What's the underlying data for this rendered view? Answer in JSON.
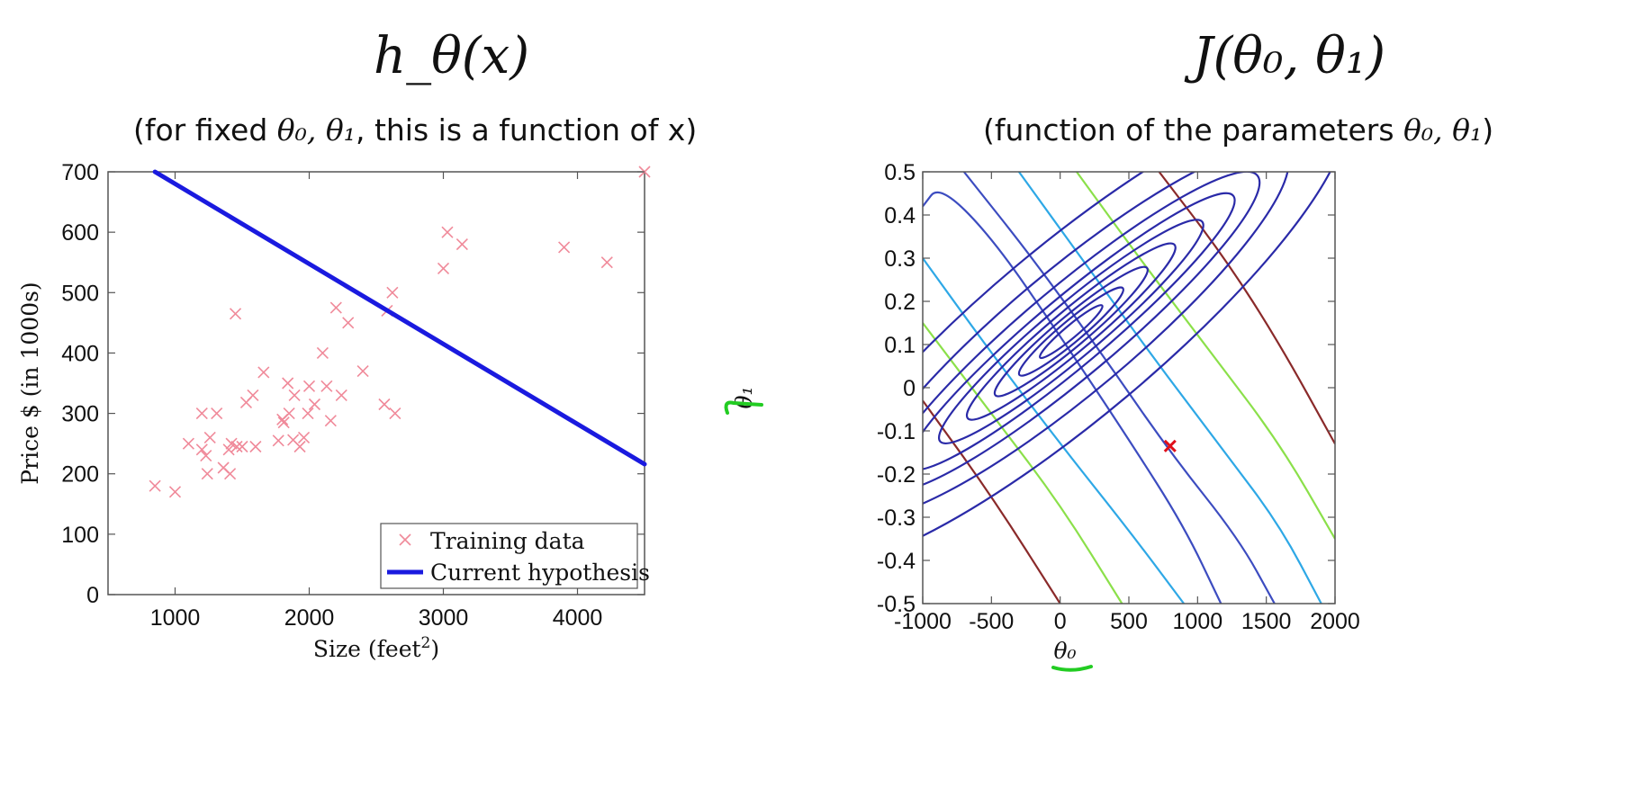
{
  "left": {
    "title": "h_θ(x)",
    "subtitle_prefix": "(for fixed ",
    "subtitle_params": "θ₀, θ₁",
    "subtitle_suffix": ", this is a function of x)"
  },
  "right": {
    "title": "J(θ₀, θ₁)",
    "subtitle_prefix": "(function of the parameters ",
    "subtitle_params": "θ₀, θ₁",
    "subtitle_suffix": ")"
  },
  "colors": {
    "training": "#f08a9a",
    "hypothesis": "#1a1adf",
    "marker": "#e0101a",
    "highlight": "#22cc22"
  },
  "chart_data": [
    {
      "type": "scatter",
      "xlabel_main": "Size (feet",
      "xlabel_sup": "2",
      "xlabel_end": ")",
      "ylabel": "Price $ (in 1000s)",
      "xlim": [
        500,
        4500
      ],
      "ylim": [
        0,
        700
      ],
      "xticks": [
        "1000",
        "2000",
        "3000",
        "4000"
      ],
      "yticks": [
        "0",
        "100",
        "200",
        "300",
        "400",
        "500",
        "600",
        "700"
      ],
      "legend_position": "bottom-right",
      "series": [
        {
          "name": "Training data",
          "marker": "x",
          "points": [
            [
              850,
              180
            ],
            [
              1000,
              170
            ],
            [
              1100,
              250
            ],
            [
              1200,
              300
            ],
            [
              1200,
              240
            ],
            [
              1230,
              230
            ],
            [
              1240,
              200
            ],
            [
              1260,
              260
            ],
            [
              1310,
              300
            ],
            [
              1360,
              210
            ],
            [
              1400,
              240
            ],
            [
              1410,
              200
            ],
            [
              1420,
              250
            ],
            [
              1450,
              465
            ],
            [
              1460,
              245
            ],
            [
              1500,
              245
            ],
            [
              1530,
              318
            ],
            [
              1580,
              330
            ],
            [
              1600,
              245
            ],
            [
              1660,
              368
            ],
            [
              1770,
              255
            ],
            [
              1800,
              290
            ],
            [
              1810,
              285
            ],
            [
              1840,
              350
            ],
            [
              1850,
              300
            ],
            [
              1880,
              256
            ],
            [
              1890,
              330
            ],
            [
              1930,
              245
            ],
            [
              1960,
              260
            ],
            [
              1990,
              300
            ],
            [
              2000,
              345
            ],
            [
              2040,
              315
            ],
            [
              2100,
              400
            ],
            [
              2130,
              345
            ],
            [
              2160,
              288
            ],
            [
              2200,
              475
            ],
            [
              2240,
              330
            ],
            [
              2290,
              450
            ],
            [
              2400,
              370
            ],
            [
              2560,
              315
            ],
            [
              2580,
              470
            ],
            [
              2620,
              500
            ],
            [
              2640,
              300
            ],
            [
              3000,
              540
            ],
            [
              3030,
              600
            ],
            [
              3140,
              580
            ],
            [
              3900,
              575
            ],
            [
              4220,
              550
            ],
            [
              4500,
              700
            ]
          ]
        },
        {
          "name": "Current hypothesis",
          "line": [
            [
              850,
              700
            ],
            [
              4500,
              216
            ]
          ]
        }
      ]
    },
    {
      "type": "contour",
      "xlabel": "θ₀",
      "ylabel": "θ₁",
      "xlim": [
        -1000,
        2000
      ],
      "ylim": [
        -0.5,
        0.5
      ],
      "xticks": [
        "-1000",
        "-500",
        "0",
        "500",
        "1000",
        "1500",
        "2000"
      ],
      "yticks": [
        "-0.5",
        "-0.4",
        "-0.3",
        "-0.2",
        "-0.1",
        "0",
        "0.1",
        "0.2",
        "0.3",
        "0.4",
        "0.5"
      ],
      "center": [
        80,
        0.13
      ],
      "rotation_deg": -40,
      "ellipse_semi_axes": [
        [
          45,
          7
        ],
        [
          75,
          12
        ],
        [
          110,
          17
        ],
        [
          150,
          23
        ],
        [
          190,
          30
        ],
        [
          235,
          38
        ],
        [
          270,
          50
        ],
        [
          310,
          68
        ],
        [
          390,
          95
        ]
      ],
      "ellipse_color": "#2a2aa8",
      "level_lines": [
        {
          "color": "#3c4cc0",
          "pts": [
            [
              -1000,
              0.42
            ],
            [
              -880,
              0.47
            ],
            [
              -500,
              0.35
            ],
            [
              0,
              0.12
            ],
            [
              500,
              -0.12
            ],
            [
              900,
              -0.32
            ],
            [
              1170,
              -0.5
            ]
          ]
        },
        {
          "color": "#3c4cc0",
          "pts": [
            [
              -700,
              0.5
            ],
            [
              -200,
              0.3
            ],
            [
              300,
              0.08
            ],
            [
              800,
              -0.15
            ],
            [
              1300,
              -0.35
            ],
            [
              1560,
              -0.5
            ]
          ]
        },
        {
          "color": "#2ea8e6",
          "pts": [
            [
              -1000,
              0.3
            ],
            [
              -500,
              0.08
            ],
            [
              0,
              -0.13
            ],
            [
              500,
              -0.33
            ],
            [
              900,
              -0.5
            ]
          ]
        },
        {
          "color": "#2ea8e6",
          "pts": [
            [
              -300,
              0.5
            ],
            [
              200,
              0.28
            ],
            [
              700,
              0.06
            ],
            [
              1200,
              -0.15
            ],
            [
              1600,
              -0.32
            ],
            [
              1900,
              -0.5
            ]
          ]
        },
        {
          "color": "#8be04a",
          "pts": [
            [
              -1000,
              0.15
            ],
            [
              -500,
              -0.06
            ],
            [
              0,
              -0.27
            ],
            [
              450,
              -0.5
            ]
          ]
        },
        {
          "color": "#8be04a",
          "pts": [
            [
              120,
              0.5
            ],
            [
              600,
              0.29
            ],
            [
              1100,
              0.08
            ],
            [
              1600,
              -0.13
            ],
            [
              2000,
              -0.35
            ]
          ]
        },
        {
          "color": "#8a2a2a",
          "pts": [
            [
              -1000,
              -0.03
            ],
            [
              -500,
              -0.25
            ],
            [
              0,
              -0.5
            ]
          ]
        },
        {
          "color": "#8a2a2a",
          "pts": [
            [
              720,
              0.5
            ],
            [
              1200,
              0.3
            ],
            [
              1600,
              0.1
            ],
            [
              2000,
              -0.13
            ]
          ]
        }
      ],
      "marker": [
        800,
        -0.135
      ]
    }
  ]
}
